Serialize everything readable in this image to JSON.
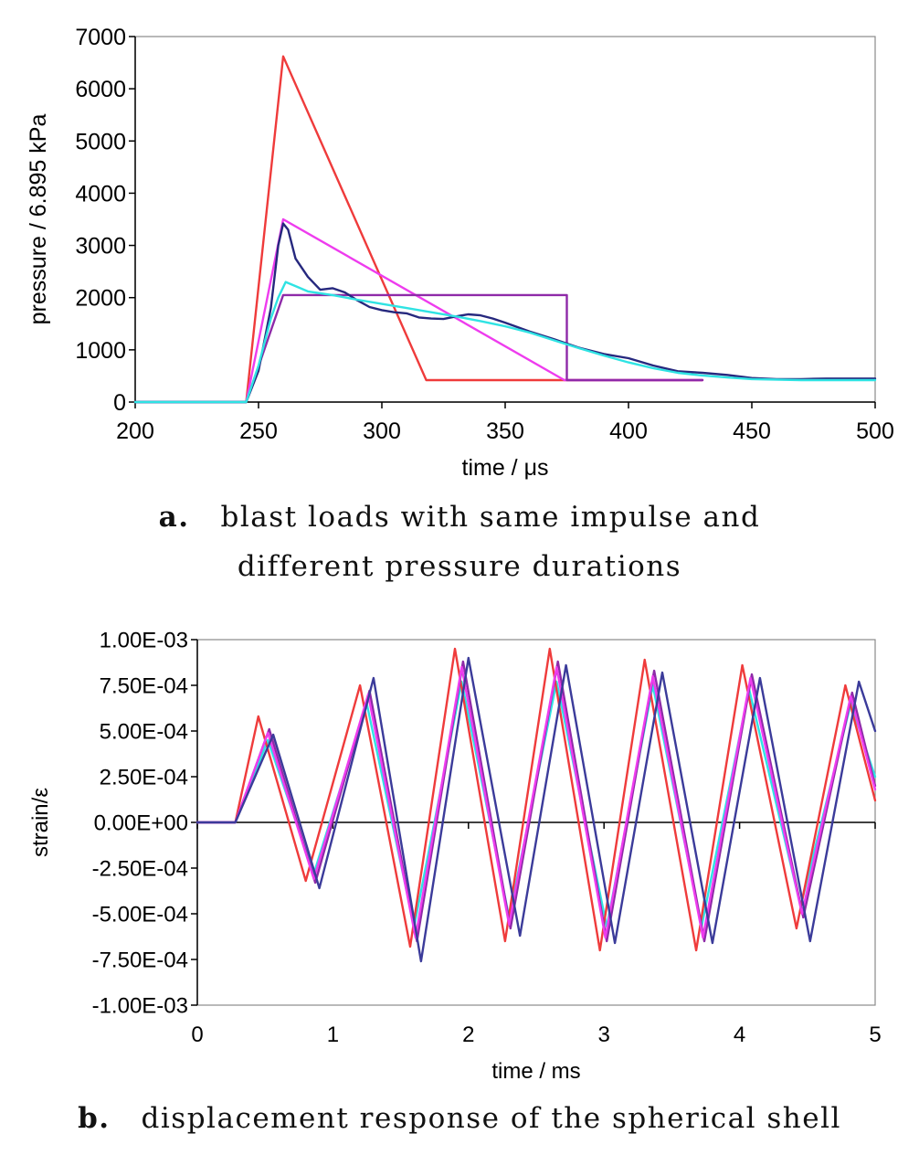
{
  "chart_data": [
    {
      "type": "line",
      "caption_letter": "a.",
      "caption_line1": "blast loads with same impulse and",
      "caption_line2": "different pressure durations",
      "xlabel": "time / μs",
      "ylabel": "pressure / 6.895 kPa",
      "xlim": [
        200,
        500
      ],
      "ylim": [
        0,
        7000
      ],
      "xticks": [
        "200",
        "250",
        "300",
        "350",
        "400",
        "450",
        "500"
      ],
      "yticks": [
        "0",
        "1000",
        "2000",
        "3000",
        "4000",
        "5000",
        "6000",
        "7000"
      ],
      "grid": false,
      "legend": "none",
      "series": [
        {
          "color": "#ef3b3b",
          "points": [
            [
              200,
              0
            ],
            [
              245,
              0
            ],
            [
              260,
              6620
            ],
            [
              318,
              420
            ],
            [
              430,
              420
            ]
          ]
        },
        {
          "color": "#ee3cee",
          "points": [
            [
              200,
              0
            ],
            [
              245,
              0
            ],
            [
              260,
              3500
            ],
            [
              374,
              420
            ],
            [
              430,
              420
            ]
          ]
        },
        {
          "color": "#8e2aa8",
          "points": [
            [
              200,
              0
            ],
            [
              245,
              0
            ],
            [
              260,
              2050
            ],
            [
              375,
              2050
            ],
            [
              375,
              420
            ],
            [
              430,
              420
            ]
          ]
        },
        {
          "color": "#26287e",
          "points": [
            [
              200,
              0
            ],
            [
              245,
              0
            ],
            [
              250,
              600
            ],
            [
              255,
              1800
            ],
            [
              258,
              3000
            ],
            [
              260,
              3420
            ],
            [
              262,
              3300
            ],
            [
              265,
              2750
            ],
            [
              270,
              2400
            ],
            [
              275,
              2150
            ],
            [
              280,
              2180
            ],
            [
              285,
              2100
            ],
            [
              290,
              1950
            ],
            [
              295,
              1820
            ],
            [
              300,
              1760
            ],
            [
              305,
              1720
            ],
            [
              310,
              1700
            ],
            [
              315,
              1620
            ],
            [
              320,
              1600
            ],
            [
              325,
              1590
            ],
            [
              330,
              1640
            ],
            [
              335,
              1680
            ],
            [
              340,
              1660
            ],
            [
              345,
              1600
            ],
            [
              350,
              1520
            ],
            [
              360,
              1350
            ],
            [
              370,
              1200
            ],
            [
              380,
              1040
            ],
            [
              390,
              920
            ],
            [
              400,
              840
            ],
            [
              410,
              700
            ],
            [
              420,
              590
            ],
            [
              430,
              560
            ],
            [
              440,
              520
            ],
            [
              450,
              460
            ],
            [
              460,
              440
            ],
            [
              470,
              440
            ],
            [
              480,
              450
            ],
            [
              500,
              450
            ]
          ]
        },
        {
          "color": "#2fe3e3",
          "points": [
            [
              200,
              0
            ],
            [
              245,
              0
            ],
            [
              250,
              700
            ],
            [
              255,
              1600
            ],
            [
              258,
              2000
            ],
            [
              261,
              2300
            ],
            [
              265,
              2220
            ],
            [
              270,
              2120
            ],
            [
              280,
              2050
            ],
            [
              290,
              1960
            ],
            [
              300,
              1880
            ],
            [
              310,
              1800
            ],
            [
              320,
              1720
            ],
            [
              330,
              1640
            ],
            [
              340,
              1550
            ],
            [
              350,
              1450
            ],
            [
              360,
              1330
            ],
            [
              370,
              1180
            ],
            [
              380,
              1030
            ],
            [
              390,
              890
            ],
            [
              400,
              760
            ],
            [
              410,
              650
            ],
            [
              420,
              560
            ],
            [
              430,
              510
            ],
            [
              440,
              470
            ],
            [
              450,
              440
            ],
            [
              470,
              420
            ],
            [
              500,
              420
            ]
          ]
        }
      ]
    },
    {
      "type": "line",
      "caption_letter": "b.",
      "caption_line1": "displacement response of the spherical shell",
      "xlabel": "time / ms",
      "ylabel": "strain/ε",
      "xlim": [
        0,
        5
      ],
      "ylim": [
        -0.001,
        0.001
      ],
      "xticks": [
        "0",
        "1",
        "2",
        "3",
        "4",
        "5"
      ],
      "yticks": [
        "1.00E-03",
        "7.50E-04",
        "5.00E-04",
        "2.50E-04",
        "0.00E+00",
        "-2.50E-04",
        "-5.00E-04",
        "-7.50E-04",
        "-1.00E-03"
      ],
      "grid": false,
      "legend": "none",
      "series": [
        {
          "color": "#2fe3e3",
          "points": [
            [
              0,
              0
            ],
            [
              0.28,
              0
            ],
            [
              0.52,
              0.00045
            ],
            [
              0.86,
              -0.00028
            ],
            [
              1.25,
              0.00065
            ],
            [
              1.6,
              -0.00057
            ],
            [
              1.95,
              0.00077
            ],
            [
              2.3,
              -0.00052
            ],
            [
              2.65,
              0.00077
            ],
            [
              3.02,
              -0.00057
            ],
            [
              3.36,
              0.00075
            ],
            [
              3.72,
              -0.00057
            ],
            [
              4.07,
              0.00073
            ],
            [
              4.45,
              -0.00046
            ],
            [
              4.82,
              0.00065
            ],
            [
              5,
              0.00025
            ]
          ]
        },
        {
          "color": "#ef3b3b",
          "points": [
            [
              0,
              0
            ],
            [
              0.28,
              0
            ],
            [
              0.45,
              0.00058
            ],
            [
              0.8,
              -0.00032
            ],
            [
              1.2,
              0.00075
            ],
            [
              1.57,
              -0.00068
            ],
            [
              1.9,
              0.00095
            ],
            [
              2.27,
              -0.00065
            ],
            [
              2.6,
              0.00095
            ],
            [
              2.97,
              -0.0007
            ],
            [
              3.3,
              0.00089
            ],
            [
              3.68,
              -0.0007
            ],
            [
              4.02,
              0.00086
            ],
            [
              4.42,
              -0.00058
            ],
            [
              4.78,
              0.00075
            ],
            [
              5,
              0.00012
            ]
          ]
        },
        {
          "color": "#8e2aa8",
          "points": [
            [
              0,
              0
            ],
            [
              0.28,
              0
            ],
            [
              0.53,
              0.00051
            ],
            [
              0.87,
              -0.00033
            ],
            [
              1.27,
              0.00072
            ],
            [
              1.62,
              -0.00065
            ],
            [
              1.96,
              0.00088
            ],
            [
              2.31,
              -0.00058
            ],
            [
              2.66,
              0.00088
            ],
            [
              3.02,
              -0.00065
            ],
            [
              3.37,
              0.00083
            ],
            [
              3.74,
              -0.00065
            ],
            [
              4.09,
              0.00081
            ],
            [
              4.47,
              -0.00052
            ],
            [
              4.83,
              0.00071
            ],
            [
              5,
              0.0002
            ]
          ]
        },
        {
          "color": "#ee3cee",
          "points": [
            [
              0,
              0
            ],
            [
              0.28,
              0
            ],
            [
              0.52,
              0.00049
            ],
            [
              0.86,
              -0.00031
            ],
            [
              1.26,
              0.0007
            ],
            [
              1.61,
              -0.00063
            ],
            [
              1.95,
              0.00085
            ],
            [
              2.3,
              -0.00056
            ],
            [
              2.65,
              0.00085
            ],
            [
              3.01,
              -0.00063
            ],
            [
              3.36,
              0.0008
            ],
            [
              3.73,
              -0.00063
            ],
            [
              4.08,
              0.00079
            ],
            [
              4.46,
              -0.0005
            ],
            [
              4.82,
              0.00069
            ],
            [
              5,
              0.00018
            ]
          ]
        },
        {
          "color": "#3b3b9a",
          "points": [
            [
              0,
              0
            ],
            [
              0.28,
              0
            ],
            [
              0.56,
              0.00048
            ],
            [
              0.9,
              -0.00036
            ],
            [
              1.3,
              0.00079
            ],
            [
              1.65,
              -0.00076
            ],
            [
              2.0,
              0.0009
            ],
            [
              2.38,
              -0.00062
            ],
            [
              2.72,
              0.00086
            ],
            [
              3.08,
              -0.00066
            ],
            [
              3.43,
              0.00082
            ],
            [
              3.8,
              -0.00066
            ],
            [
              4.15,
              0.00079
            ],
            [
              4.52,
              -0.00065
            ],
            [
              4.88,
              0.00077
            ],
            [
              5,
              0.0005
            ]
          ]
        }
      ]
    }
  ]
}
